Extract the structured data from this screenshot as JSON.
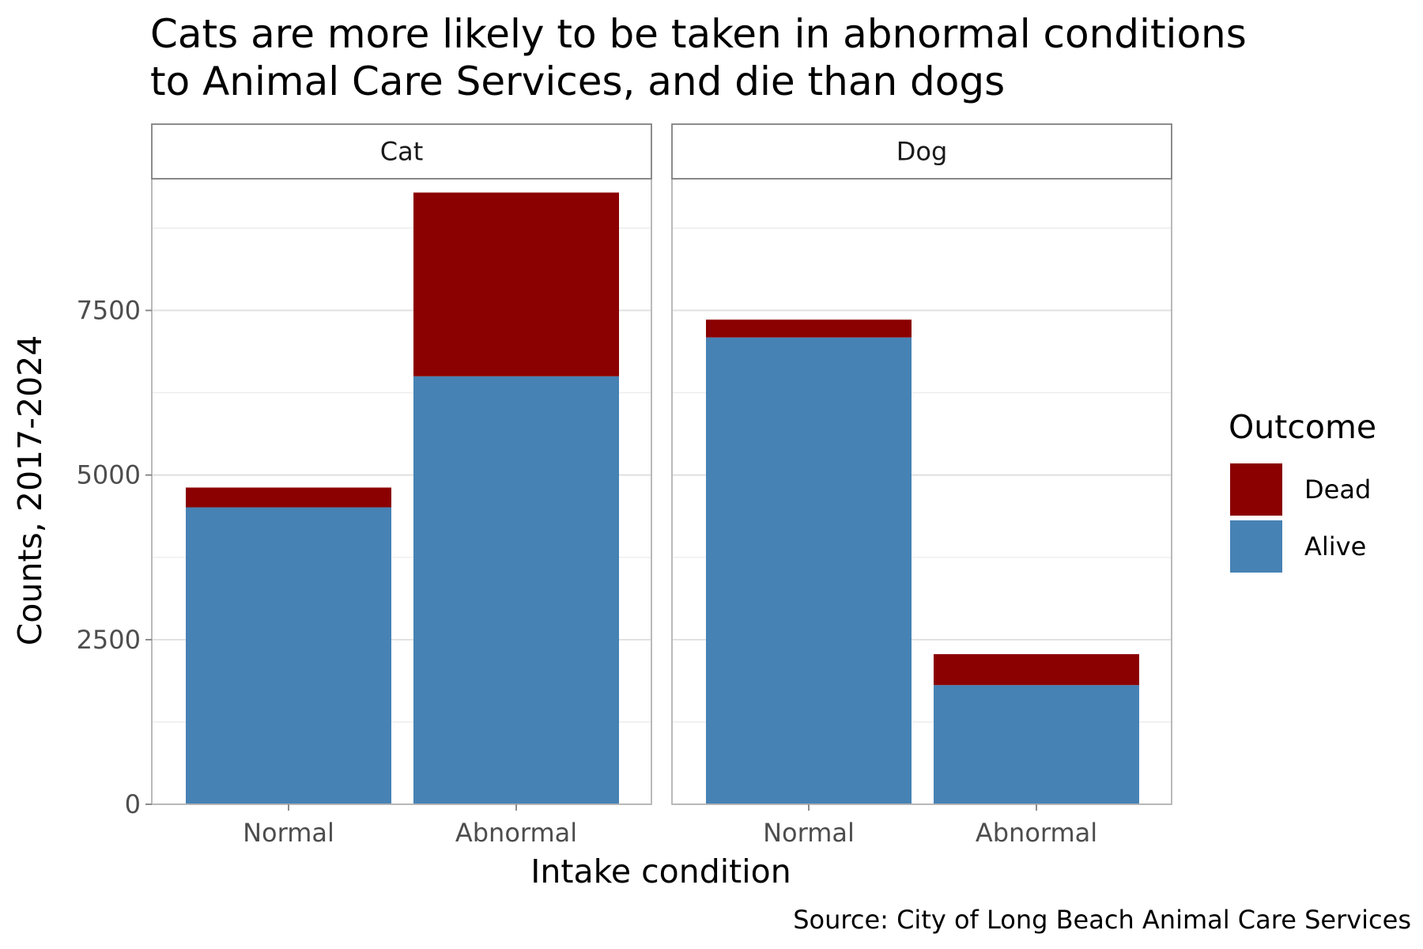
{
  "chart_data": {
    "type": "bar",
    "stacked": true,
    "title_lines": [
      "Cats are more likely to be taken in abnormal conditions",
      "to Animal Care Services, and die than dogs"
    ],
    "xlabel": "Intake condition",
    "ylabel": "Counts, 2017-2024",
    "caption": "Source: City of Long Beach Animal Care Services",
    "ylim": [
      0,
      9500
    ],
    "y_ticks": [
      0,
      2500,
      5000,
      7500
    ],
    "y_tick_labels": [
      "0",
      "2500",
      "5000",
      "7500"
    ],
    "grid": true,
    "categories": [
      "Normal",
      "Abnormal"
    ],
    "legend": {
      "title": "Outcome",
      "position": "right",
      "entries": [
        {
          "label": "Dead",
          "color": "#8b0000"
        },
        {
          "label": "Alive",
          "color": "#4682b4"
        }
      ]
    },
    "facets": [
      {
        "label": "Cat",
        "series": [
          {
            "name": "Alive",
            "color": "#4682b4",
            "values": [
              4510,
              6500
            ]
          },
          {
            "name": "Dead",
            "color": "#8b0000",
            "values": [
              300,
              2790
            ]
          }
        ]
      },
      {
        "label": "Dog",
        "series": [
          {
            "name": "Alive",
            "color": "#4682b4",
            "values": [
              7090,
              1810
            ]
          },
          {
            "name": "Dead",
            "color": "#8b0000",
            "values": [
              270,
              470
            ]
          }
        ]
      }
    ]
  }
}
